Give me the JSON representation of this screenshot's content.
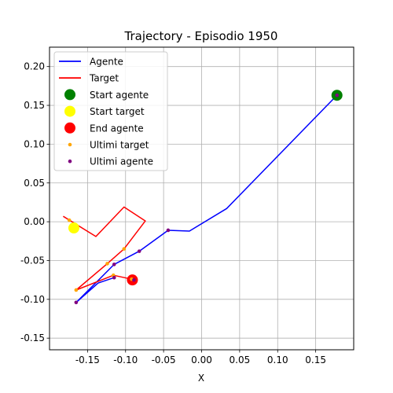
{
  "chart_data": {
    "type": "line",
    "title": "Trajectory - Episodio 1950",
    "xlabel": "X",
    "ylabel": "",
    "xlim": [
      -0.2,
      0.2
    ],
    "ylim": [
      -0.165,
      0.225
    ],
    "xticks": [
      "-0.15",
      "-0.10",
      "-0.05",
      "0.00",
      "0.05",
      "0.10",
      "0.15"
    ],
    "xtick_values": [
      -0.15,
      -0.1,
      -0.05,
      0.0,
      0.05,
      0.1,
      0.15
    ],
    "yticks": [
      "-0.15",
      "-0.10",
      "-0.05",
      "0.00",
      "0.05",
      "0.10",
      "0.15",
      "0.20"
    ],
    "ytick_values": [
      -0.15,
      -0.1,
      -0.05,
      0.0,
      0.05,
      0.1,
      0.15,
      0.2
    ],
    "grid": true,
    "legend_position": "top-left",
    "series": [
      {
        "name": "Agente",
        "kind": "line",
        "color": "#0000ff",
        "points": [
          [
            0.178,
            0.163
          ],
          [
            0.033,
            0.017
          ],
          [
            -0.016,
            -0.012
          ],
          [
            -0.044,
            -0.011
          ],
          [
            -0.082,
            -0.038
          ],
          [
            -0.115,
            -0.055
          ],
          [
            -0.165,
            -0.104
          ],
          [
            -0.136,
            -0.079
          ],
          [
            -0.115,
            -0.072
          ]
        ]
      },
      {
        "name": "Target",
        "kind": "line",
        "color": "#ff0000",
        "points": [
          [
            -0.182,
            0.007
          ],
          [
            -0.139,
            -0.019
          ],
          [
            -0.102,
            0.019
          ],
          [
            -0.074,
            0.001
          ],
          [
            -0.102,
            -0.035
          ],
          [
            -0.124,
            -0.054
          ],
          [
            -0.165,
            -0.088
          ],
          [
            -0.116,
            -0.069
          ],
          [
            -0.092,
            -0.074
          ],
          [
            -0.088,
            -0.077
          ]
        ]
      },
      {
        "name": "Start agente",
        "kind": "marker",
        "color": "#008000",
        "points": [
          [
            0.178,
            0.163
          ]
        ]
      },
      {
        "name": "Start target",
        "kind": "marker",
        "color": "#ffff00",
        "points": [
          [
            -0.168,
            -0.008
          ]
        ]
      },
      {
        "name": "End agente",
        "kind": "marker",
        "color": "#ff0000",
        "points": [
          [
            -0.091,
            -0.075
          ]
        ]
      },
      {
        "name": "Ultimi target",
        "kind": "scatter",
        "color": "#ffa500",
        "points": [
          [
            -0.174,
            0.002
          ],
          [
            -0.102,
            -0.035
          ],
          [
            -0.124,
            -0.054
          ],
          [
            -0.165,
            -0.088
          ],
          [
            -0.116,
            -0.069
          ],
          [
            -0.092,
            -0.074
          ]
        ]
      },
      {
        "name": "Ultimi agente",
        "kind": "scatter",
        "color": "#800080",
        "points": [
          [
            0.178,
            0.163
          ],
          [
            -0.044,
            -0.011
          ],
          [
            -0.082,
            -0.038
          ],
          [
            -0.115,
            -0.055
          ],
          [
            -0.165,
            -0.104
          ],
          [
            -0.115,
            -0.072
          ],
          [
            -0.089,
            -0.075
          ]
        ]
      }
    ]
  }
}
